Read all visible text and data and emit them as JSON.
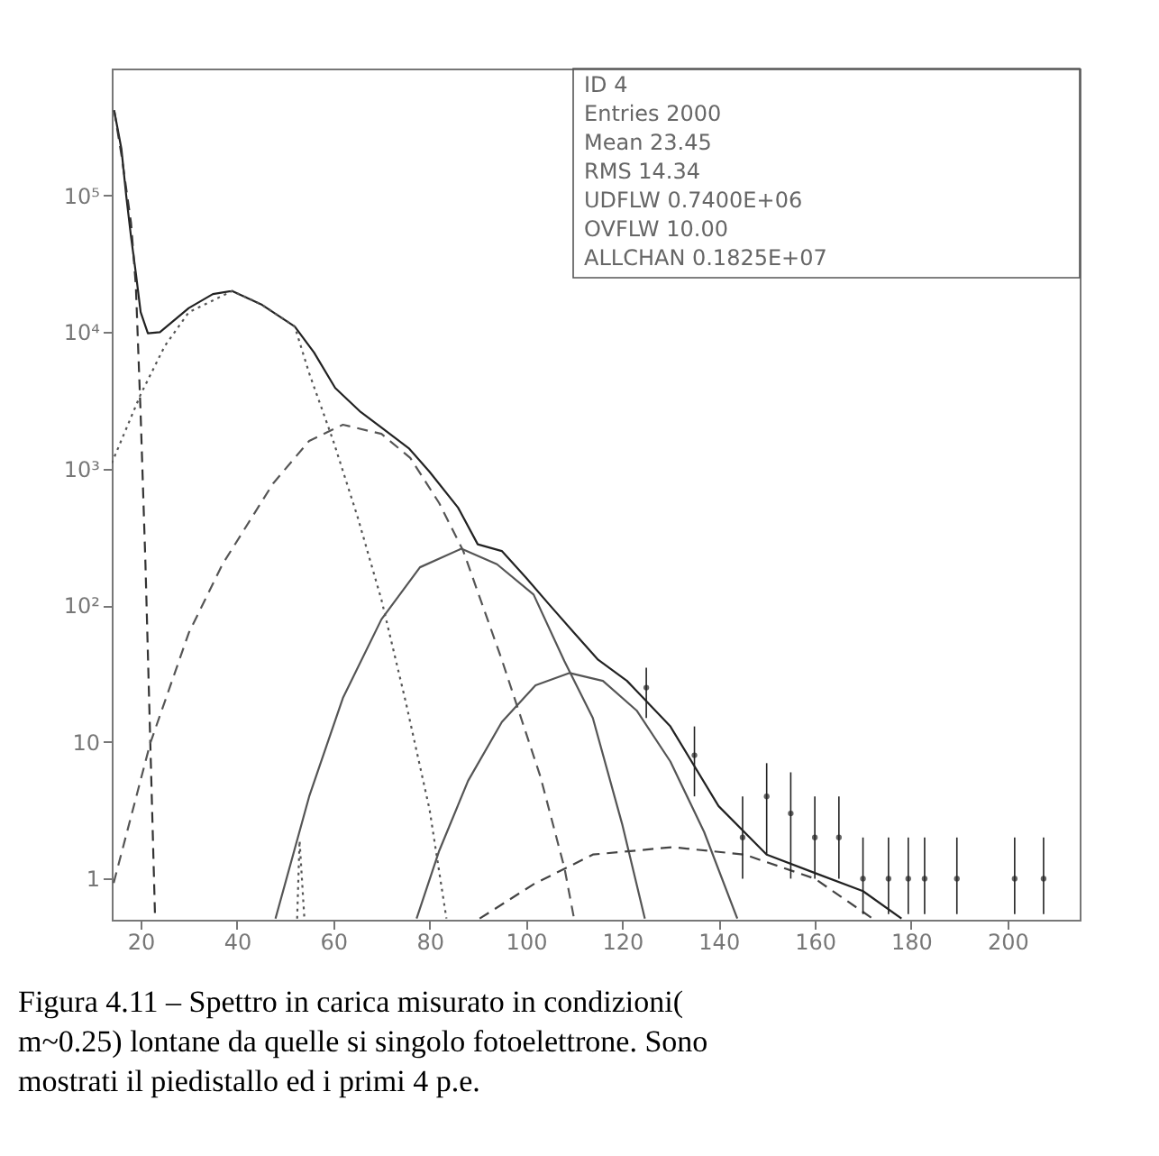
{
  "chart_data": {
    "type": "line",
    "log": "y",
    "grid": false,
    "xlim": [
      14,
      215
    ],
    "xticks": [
      20,
      40,
      60,
      80,
      100,
      120,
      140,
      160,
      180,
      200
    ],
    "ylim": [
      0.5,
      850000
    ],
    "yticks": [
      1,
      10,
      {
        "value": 100,
        "label": "10²"
      },
      {
        "value": 1000,
        "label": "10³"
      },
      {
        "value": 10000,
        "label": "10⁴"
      },
      {
        "value": 100000,
        "label": "10⁵"
      }
    ],
    "series": [
      {
        "line_style": "solid",
        "color": "#222222",
        "x": [
          14.5,
          16,
          17,
          18,
          19,
          20,
          21.5,
          24,
          30,
          35,
          39,
          45,
          52,
          56,
          60.4,
          65.7,
          70,
          75.8,
          80,
          85.9,
          90,
          95,
          100,
          105,
          110,
          115,
          121,
          130,
          140,
          150,
          160,
          170,
          178
        ],
        "values": [
          420000,
          220000,
          100000,
          50000,
          27000,
          14000,
          9800,
          10000,
          15000,
          19000,
          20000,
          16000,
          11000,
          7100,
          3900,
          2600,
          2000,
          1400,
          950,
          520,
          280,
          250,
          160,
          100,
          63,
          40,
          28,
          13,
          3.4,
          1.5,
          1.1,
          0.81,
          0.51
        ]
      },
      {
        "line_style": "dashed",
        "color": "#333333",
        "x": [
          14.5,
          16,
          18,
          19,
          20,
          21,
          22,
          23
        ],
        "values": [
          420000,
          200000,
          63000,
          22000,
          2500,
          200,
          10,
          0.51
        ]
      },
      {
        "line_style": "dotted",
        "color": "#555555",
        "x": [
          14,
          20,
          25,
          30,
          39,
          45,
          52,
          55,
          60,
          65,
          70,
          75,
          80,
          83.5
        ],
        "values": [
          1100,
          3500,
          7900,
          14000,
          20000,
          16000,
          11000,
          5000,
          1600,
          450,
          110,
          20,
          3.2,
          0.51
        ]
      },
      {
        "line_style": "dashed",
        "color": "#555555",
        "x": [
          14.4,
          22,
          30,
          37,
          47.5,
          55,
          62,
          70,
          76,
          82,
          87,
          95,
          103,
          108,
          110
        ],
        "values": [
          0.93,
          9.8,
          63,
          200,
          780,
          1600,
          2100,
          1800,
          1200,
          560,
          250,
          40,
          5.6,
          1.2,
          0.51
        ]
      },
      {
        "line_style": "solid",
        "color": "#555555",
        "x": [
          48,
          55,
          62,
          70,
          78,
          86.6,
          94,
          101.6,
          108,
          113.9,
          120,
          124.7
        ],
        "values": [
          0.51,
          4,
          21,
          79,
          190,
          260,
          200,
          120,
          39,
          15,
          2.5,
          0.51
        ]
      },
      {
        "line_style": "solid",
        "color": "#555555",
        "x": [
          77.3,
          82,
          88,
          95,
          102,
          109.1,
          116,
          123,
          130,
          137,
          143.9
        ],
        "values": [
          0.51,
          1.6,
          5.2,
          14,
          26,
          32,
          28,
          17,
          7.2,
          2.2,
          0.51
        ]
      },
      {
        "line_style": "dashed",
        "color": "#444444",
        "x": [
          90.4,
          101.6,
          113.9,
          130.4,
          145.4,
          160,
          172
        ],
        "values": [
          0.51,
          0.91,
          1.5,
          1.7,
          1.5,
          1.0,
          0.51
        ]
      },
      {
        "line_style": "dotted",
        "color": "#555555",
        "x": [
          52.5,
          53,
          54
        ],
        "values": [
          0.51,
          1.9,
          0.51
        ]
      },
      {
        "type": "scatter",
        "marker": "circle",
        "color": "#222222",
        "x": [
          125,
          135,
          145,
          150,
          155,
          160,
          165,
          170,
          175.3,
          179.4,
          182.8,
          189.5,
          201.5,
          207.5
        ],
        "values": [
          25,
          8,
          2,
          4,
          3,
          2,
          2,
          1,
          1,
          1,
          1,
          1,
          1,
          1
        ],
        "errors": [
          [
            15,
            35
          ],
          [
            4,
            13
          ],
          [
            1,
            4
          ],
          [
            1.5,
            7
          ],
          [
            1,
            6
          ],
          [
            1,
            4
          ],
          [
            1,
            4
          ],
          [
            0.55,
            2
          ],
          [
            0.55,
            2
          ],
          [
            0.55,
            2
          ],
          [
            0.55,
            2
          ],
          [
            0.55,
            2
          ],
          [
            0.55,
            2
          ],
          [
            0.55,
            2
          ]
        ]
      }
    ],
    "annotations": [
      "ID 4",
      "Entries 2000",
      "Mean 23.45",
      "RMS 14.34",
      "UDFLW 0.7400E+06",
      "OVFLW 10.00",
      "ALLCHAN 0.1825E+07",
      "Figura 4.11 – Spettro in carica misurato in condizioni( m~0.25) lontane da quelle si singolo fotoelettrone. Sono mostrati il piedistallo ed i primi 4 p.e."
    ]
  }
}
